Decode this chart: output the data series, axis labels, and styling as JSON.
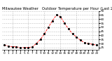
{
  "title": "Milwaukee Weather   Outdoor Temperature per Hour (Last 24 Hours)",
  "hours": [
    0,
    1,
    2,
    3,
    4,
    5,
    6,
    7,
    8,
    9,
    10,
    11,
    12,
    13,
    14,
    15,
    16,
    17,
    18,
    19,
    20,
    21,
    22,
    23
  ],
  "temps": [
    28,
    27,
    26,
    26,
    25,
    25,
    25,
    26,
    30,
    35,
    42,
    50,
    58,
    65,
    63,
    55,
    48,
    42,
    38,
    34,
    31,
    30,
    29,
    28
  ],
  "line_color": "#ff0000",
  "dot_color": "#000000",
  "background_color": "#ffffff",
  "grid_color": "#888888",
  "title_color": "#000000",
  "title_fontsize": 3.8,
  "tick_fontsize": 3.0,
  "ylim": [
    22,
    70
  ],
  "ytick_step": 5,
  "xlim": [
    -0.5,
    23.5
  ],
  "vertical_grid_positions": [
    2,
    6,
    10,
    14,
    18,
    22
  ]
}
